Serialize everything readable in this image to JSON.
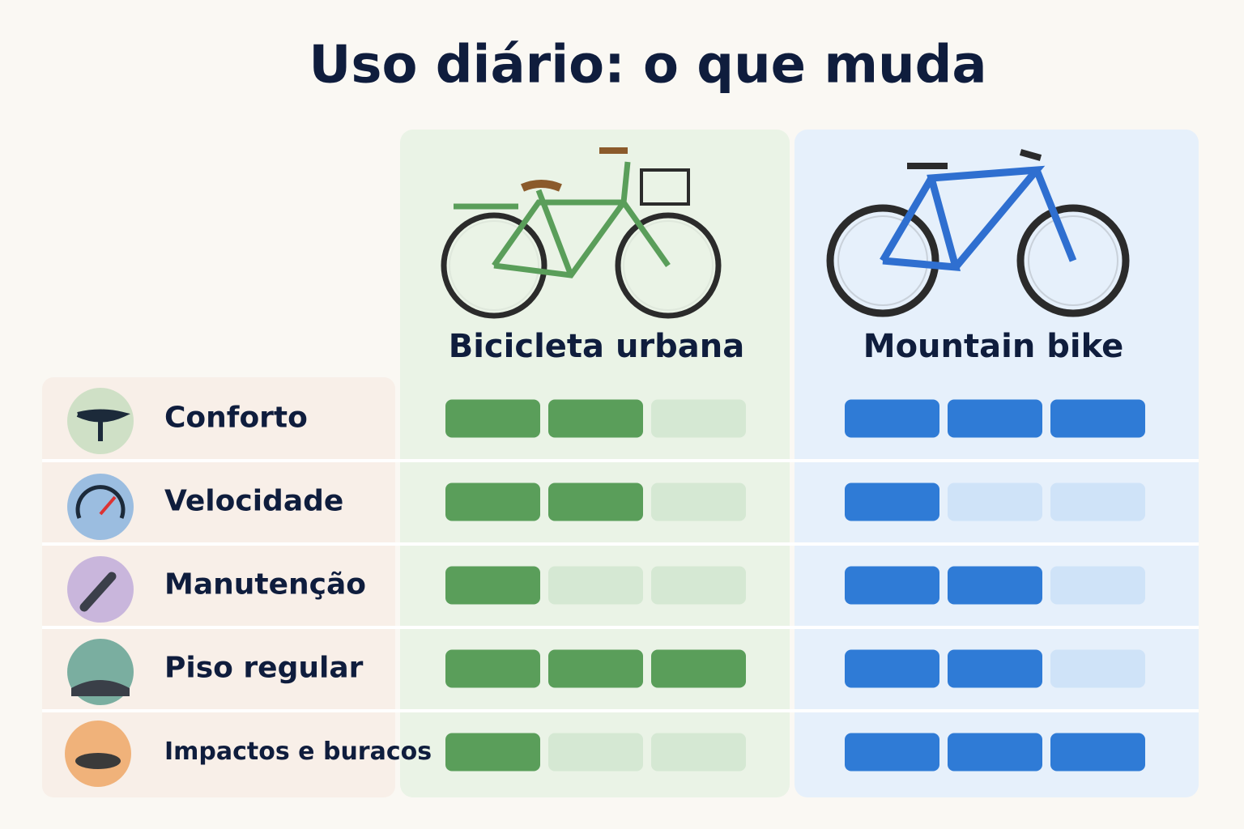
{
  "title": "Uso diário: o que muda",
  "max": 3,
  "columns": [
    {
      "name": "Bicicleta urbana",
      "color": "#5a9e5a",
      "light": "#d5e8d3",
      "panel": "#eaf3e6"
    },
    {
      "name": "Mountain bike",
      "color": "#2f7bd6",
      "light": "#cfe3f8",
      "panel": "#e6f0fb"
    }
  ],
  "rows": [
    {
      "label": "Conforto",
      "ratings": [
        2,
        3
      ]
    },
    {
      "label": "Velocidade",
      "ratings": [
        2,
        1
      ]
    },
    {
      "label": "Manutenção",
      "ratings": [
        1,
        2
      ]
    },
    {
      "label": "Piso regular",
      "ratings": [
        3,
        2
      ]
    },
    {
      "label": "Impactos e buracos",
      "ratings": [
        1,
        3
      ]
    }
  ]
}
